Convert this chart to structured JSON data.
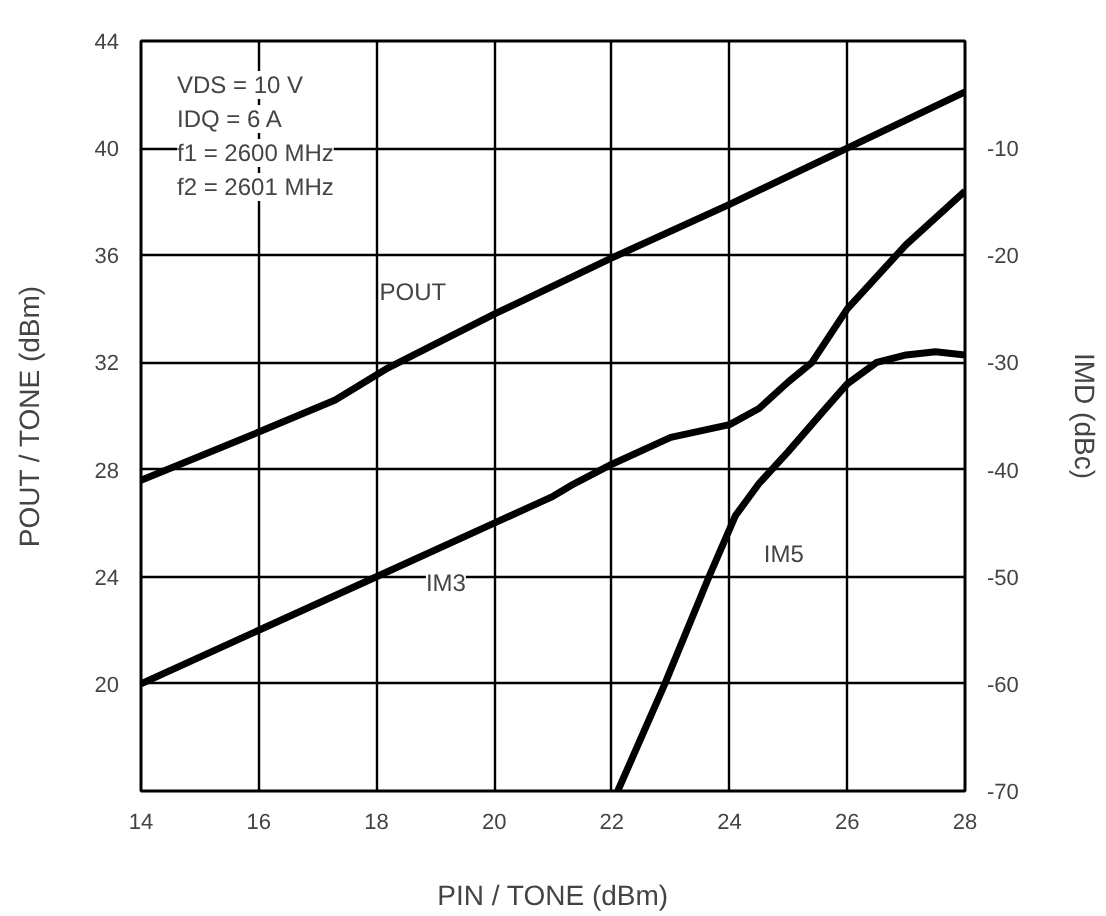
{
  "chart_data": {
    "type": "line",
    "xlabel": "PIN / TONE (dBm)",
    "ylabel": "POUT / TONE (dBm)",
    "y2label": "IMD (dBc)",
    "annotations": [
      "VDS = 10 V",
      "IDQ = 6 A",
      "f1 = 2600 MHz",
      "f2 = 2601 MHz"
    ],
    "xlim": [
      14,
      28
    ],
    "xticks": [
      14,
      16,
      18,
      20,
      22,
      24,
      26,
      28
    ],
    "ylim": [
      16,
      44
    ],
    "yticks": [
      20,
      24,
      28,
      32,
      36,
      40,
      44
    ],
    "y2lim": [
      -70,
      0
    ],
    "y2ticks": [
      -70,
      -60,
      -50,
      -40,
      -30,
      -20,
      -10
    ],
    "grid": true,
    "line_style": "solid",
    "marker": "none",
    "series": [
      {
        "name": "POUT",
        "color": "#000000",
        "x": [
          14,
          16,
          17.3,
          18.2,
          20,
          22,
          24,
          26,
          28
        ],
        "values": [
          27.6,
          29.4,
          30.6,
          31.8,
          33.8,
          35.9,
          37.9,
          40,
          42.1
        ]
      },
      {
        "name": "IM3",
        "color": "#000000",
        "axis": "y2",
        "x": [
          14,
          16,
          18,
          20,
          21,
          21.3,
          22,
          23,
          24,
          24.5,
          25,
          25.4,
          26,
          27,
          28
        ],
        "values": [
          -60,
          -55,
          -50,
          -45,
          -42.5,
          -41.5,
          -39.5,
          -37,
          -35.8,
          -34.3,
          -31.8,
          -30,
          -25,
          -19,
          -14
        ]
      },
      {
        "name": "IM5",
        "color": "#000000",
        "axis": "y2",
        "x": [
          22.1,
          22.9,
          23.65,
          24.1,
          24.5,
          25,
          25.6,
          26,
          26.5,
          27,
          27.5,
          28
        ],
        "values": [
          -70,
          -60,
          -50,
          -44.3,
          -41.3,
          -38.3,
          -34.5,
          -32,
          -30,
          -29.3,
          -29,
          -29.3
        ]
      }
    ]
  }
}
